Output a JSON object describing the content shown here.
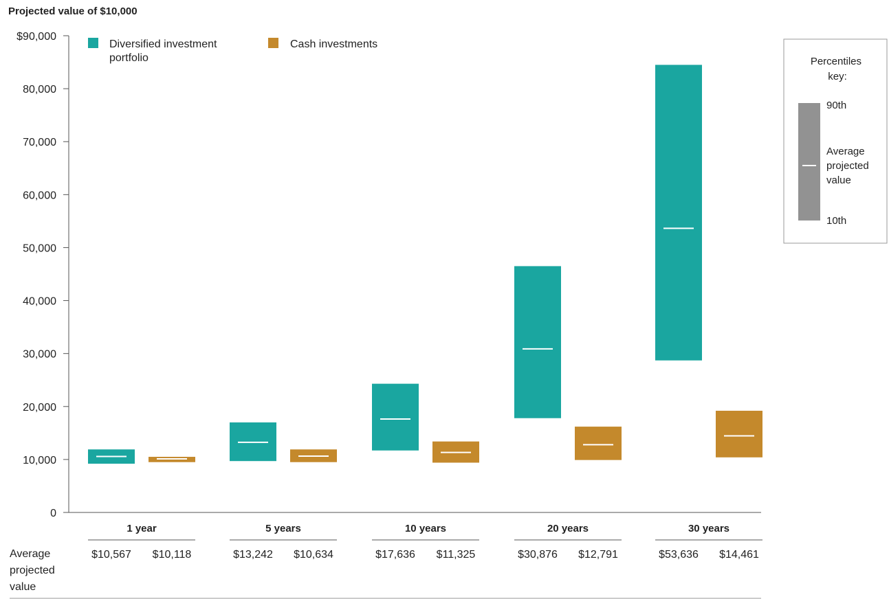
{
  "chart_data": {
    "type": "range_bar",
    "title": "Projected value of $10,000",
    "ylim": [
      0,
      90000
    ],
    "yticks": [
      0,
      10000,
      20000,
      30000,
      40000,
      50000,
      60000,
      70000,
      80000,
      90000
    ],
    "ytick_labels": [
      "0",
      "10,000",
      "20,000",
      "30,000",
      "40,000",
      "50,000",
      "60,000",
      "70,000",
      "80,000",
      "$90,000"
    ],
    "categories": [
      "1 year",
      "5 years",
      "10 years",
      "20 years",
      "30 years"
    ],
    "grid": false,
    "legend_position": "top-left",
    "series": [
      {
        "name": "Diversified investment portfolio",
        "color": "#1aa6a0",
        "p10": [
          9200,
          9700,
          11700,
          17800,
          28700
        ],
        "p90": [
          11900,
          17000,
          24300,
          46500,
          84500
        ],
        "average": [
          10567,
          13242,
          17636,
          30876,
          53636
        ],
        "average_labels": [
          "$10,567",
          "$13,242",
          "$17,636",
          "$30,876",
          "$53,636"
        ]
      },
      {
        "name": "Cash investments",
        "color": "#c4892c",
        "p10": [
          9500,
          9500,
          9400,
          9900,
          10400
        ],
        "p90": [
          10500,
          11900,
          13400,
          16200,
          19200
        ],
        "average": [
          10118,
          10634,
          11325,
          12791,
          14461
        ],
        "average_labels": [
          "$10,118",
          "$10,634",
          "$11,325",
          "$12,791",
          "$14,461"
        ]
      }
    ],
    "row_label": "Average projected value",
    "key": {
      "title": "Percentiles key:",
      "top": "90th",
      "middle": "Average projected value",
      "bottom": "10th",
      "color": "#929292"
    }
  },
  "legend_labels": {
    "diversified": "Diversified investment portfolio",
    "cash": "Cash investments"
  }
}
